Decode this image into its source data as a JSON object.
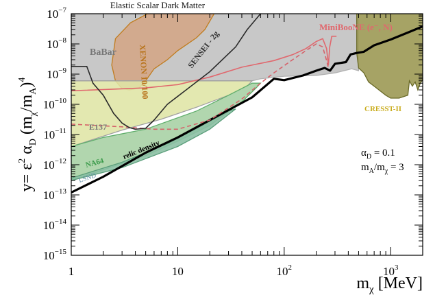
{
  "chart_data": {
    "type": "area",
    "title": "Elastic Scalar Dark Matter",
    "xlabel": {
      "base": "m",
      "sub": "χ",
      "unit": " [MeV]"
    },
    "ylabel": {
      "prefix": "y= ε",
      "sup2": "2",
      "alpha": " α",
      "alpha_sub": "D",
      "open": " (m",
      "m1_sub": "χ",
      "slash": "/m",
      "m2_sub": "A",
      "close": ")",
      "power": "4"
    },
    "x_scale": "log",
    "y_scale": "log",
    "xlim": [
      1,
      2000
    ],
    "ylim": [
      1e-15,
      1e-07
    ],
    "x_ticks": [
      {
        "value": 1,
        "label": "1"
      },
      {
        "value": 10,
        "label": "10"
      },
      {
        "value": 100,
        "label": "10",
        "exp": "2"
      },
      {
        "value": 1000,
        "label": "10",
        "exp": "3"
      }
    ],
    "y_ticks": [
      {
        "value": 1e-15,
        "exp": "−15"
      },
      {
        "value": 1e-14,
        "exp": "−14"
      },
      {
        "value": 1e-13,
        "exp": "−13"
      },
      {
        "value": 1e-12,
        "exp": "−12"
      },
      {
        "value": 1e-11,
        "exp": "−11"
      },
      {
        "value": 1e-10,
        "exp": "−10"
      },
      {
        "value": 1e-09,
        "exp": "−9"
      },
      {
        "value": 1e-08,
        "exp": "−8"
      },
      {
        "value": 1e-07,
        "exp": "−7"
      }
    ],
    "tick_base": "10",
    "params": {
      "alpha_line": {
        "base": "α",
        "sub": "D",
        "rest": " = 0.1"
      },
      "mass_line": {
        "base": "m",
        "sub1": "A",
        "mid": "/m",
        "sub2": "χ",
        "rest": " = 3"
      }
    },
    "regions": [
      {
        "name": "BaBar",
        "fill": "#c8c8c8",
        "stroke": "#b0b0b0",
        "label_color": "#777777",
        "points": [
          [
            1,
            1e-07
          ],
          [
            500,
            1e-07
          ],
          [
            500,
            1.3e-09
          ],
          [
            430,
            1.5e-09
          ],
          [
            300,
            1.1e-09
          ],
          [
            200,
            9e-10
          ],
          [
            100,
            8.5e-10
          ],
          [
            60,
            7e-10
          ],
          [
            50,
            6e-10
          ],
          [
            1,
            6e-10
          ]
        ]
      },
      {
        "name": "XENON 10/100",
        "fill": "#d3a687",
        "stroke": "#c07c1e",
        "label_color": "#b8741c",
        "opacity": 0.9,
        "points": [
          [
            5.2,
            1e-07
          ],
          [
            22,
            1e-07
          ],
          [
            18,
            3e-08
          ],
          [
            15,
            1.6e-08
          ],
          [
            10,
            6e-09
          ],
          [
            8,
            3e-09
          ],
          [
            6,
            1.5e-09
          ],
          [
            5,
            6e-10
          ],
          [
            4.3,
            3.4e-10
          ],
          [
            3.5,
            3e-10
          ],
          [
            3,
            3.3e-10
          ],
          [
            2.6,
            6e-10
          ],
          [
            2.4,
            2e-09
          ],
          [
            2.6,
            1.5e-08
          ],
          [
            3.6,
            5e-08
          ]
        ]
      },
      {
        "name": "E137",
        "fill": "#dfe5a5",
        "stroke": "#a0a0a0",
        "label_color": "#777777",
        "opacity": 0.88,
        "points": [
          [
            1,
            6e-10
          ],
          [
            50,
            6e-10
          ],
          [
            45,
            4e-10
          ],
          [
            30,
            2e-10
          ],
          [
            15,
            8e-11
          ],
          [
            7,
            3.2e-11
          ],
          [
            3,
            1.4e-11
          ],
          [
            1,
            4e-12
          ]
        ]
      },
      {
        "name": "NA64",
        "fill": "#a9d2a5",
        "stroke": "#5fae6b",
        "label_color": "#3a9a4a",
        "opacity": 0.9,
        "points": [
          [
            1,
            3e-13
          ],
          [
            5,
            2e-12
          ],
          [
            10,
            6e-12
          ],
          [
            20,
            2e-11
          ],
          [
            40,
            1.2e-10
          ],
          [
            55,
            3.6e-10
          ],
          [
            60,
            5e-10
          ],
          [
            50,
            5e-10
          ],
          [
            30,
            2e-10
          ],
          [
            15,
            6e-11
          ],
          [
            5,
            1.5e-11
          ],
          [
            2,
            8e-12
          ],
          [
            1,
            4e-12
          ]
        ]
      },
      {
        "name": "LSND",
        "fill": "#8cc0a4",
        "stroke": "#5a9e7a",
        "label_color": "#5f8fa8",
        "opacity": 0.9,
        "points": [
          [
            1,
            3e-13
          ],
          [
            3,
            8e-13
          ],
          [
            10,
            4e-12
          ],
          [
            20,
            1.5e-11
          ],
          [
            35,
            7e-11
          ],
          [
            30,
            6e-11
          ],
          [
            15,
            1.6e-11
          ],
          [
            8,
            5e-12
          ],
          [
            3,
            1.2e-12
          ],
          [
            1,
            3.6e-13
          ]
        ]
      },
      {
        "name": "CRESST-II",
        "fill": "#9e9b58",
        "stroke": "#6a6a28",
        "label_color": "#c9ac1c",
        "opacity": 0.92,
        "points": [
          [
            480,
            1e-07
          ],
          [
            2000,
            1e-07
          ],
          [
            2000,
            6.5e-10
          ],
          [
            1900,
            5e-10
          ],
          [
            1800,
            3e-10
          ],
          [
            1700,
            5.5e-10
          ],
          [
            1600,
            4e-10
          ],
          [
            1500,
            6e-10
          ],
          [
            1450,
            2e-10
          ],
          [
            1200,
            1.6e-10
          ],
          [
            1000,
            1.6e-10
          ],
          [
            900,
            2e-10
          ],
          [
            750,
            3.3e-10
          ],
          [
            620,
            5.5e-10
          ],
          [
            560,
            1.1e-09
          ],
          [
            500,
            1.6e-09
          ],
          [
            480,
            5e-09
          ]
        ]
      }
    ],
    "lines": [
      {
        "name": "relic density",
        "color": "#000000",
        "width": 3.2,
        "dash": "",
        "label_color": "#000000",
        "points": [
          [
            1,
            1.2e-13
          ],
          [
            2,
            4e-13
          ],
          [
            5,
            2.5e-12
          ],
          [
            10,
            8e-12
          ],
          [
            20,
            3e-11
          ],
          [
            50,
            1.7e-10
          ],
          [
            80,
            7e-10
          ],
          [
            100,
            6.3e-10
          ],
          [
            150,
            9e-10
          ],
          [
            200,
            1.3e-09
          ],
          [
            240,
            1.6e-09
          ],
          [
            270,
            1.3e-09
          ],
          [
            300,
            2.2e-09
          ],
          [
            380,
            2.5e-09
          ],
          [
            420,
            4.5e-09
          ],
          [
            480,
            5e-09
          ],
          [
            560,
            5.5e-09
          ],
          [
            700,
            9e-09
          ],
          [
            1000,
            1.4e-08
          ],
          [
            1500,
            2.5e-08
          ],
          [
            2000,
            3.8e-08
          ]
        ]
      },
      {
        "name": "MiniBooNE (e⁻, N)",
        "color": "#e0686e",
        "width": 1.6,
        "dash": "",
        "label_color": "#e0686e",
        "points": [
          [
            1,
            2.8e-10
          ],
          [
            5,
            3.5e-10
          ],
          [
            10,
            4.5e-10
          ],
          [
            20,
            8e-10
          ],
          [
            40,
            1.7e-09
          ],
          [
            80,
            2.8e-09
          ],
          [
            120,
            4.4e-09
          ],
          [
            160,
            7e-09
          ],
          [
            200,
            1.2e-08
          ],
          [
            230,
            1.5e-08
          ],
          [
            250,
            7e-09
          ],
          [
            260,
            2e-09
          ],
          [
            268,
            8e-09
          ],
          [
            280,
            1.8e-08
          ],
          [
            310,
            1.8e-08
          ]
        ]
      },
      {
        "name": "MiniBooNE dashed",
        "color": "#d5626a",
        "width": 1.6,
        "dash": "6,4",
        "points": [
          [
            1,
            2.2e-11
          ],
          [
            3,
            1.8e-11
          ],
          [
            6,
            1.5e-11
          ],
          [
            10,
            1.5e-11
          ],
          [
            20,
            3e-11
          ],
          [
            40,
            1.5e-10
          ],
          [
            60,
            5e-10
          ],
          [
            80,
            1.1e-09
          ],
          [
            120,
            3e-09
          ],
          [
            160,
            6e-09
          ],
          [
            200,
            1e-08
          ],
          [
            230,
            8e-09
          ],
          [
            250,
            2.8e-09
          ],
          [
            260,
            1.6e-09
          ]
        ]
      },
      {
        "name": "SENSEI - 2g",
        "color": "#2b2b2b",
        "width": 1.6,
        "dash": "",
        "label_color": "#333333",
        "points": [
          [
            1,
            1.8e-09
          ],
          [
            1.4,
            1.8e-09
          ],
          [
            1.6,
            5e-10
          ],
          [
            2,
            2e-10
          ],
          [
            2.5,
            5e-11
          ],
          [
            3,
            2.4e-11
          ],
          [
            3.5,
            1.7e-11
          ],
          [
            4,
            1.5e-11
          ],
          [
            5,
            1.6e-11
          ],
          [
            6,
            3e-11
          ],
          [
            8,
            1e-10
          ],
          [
            12,
            3e-10
          ],
          [
            20,
            1.2e-09
          ],
          [
            35,
            8e-09
          ],
          [
            45,
            3e-08
          ],
          [
            60,
            1e-07
          ]
        ]
      }
    ]
  }
}
